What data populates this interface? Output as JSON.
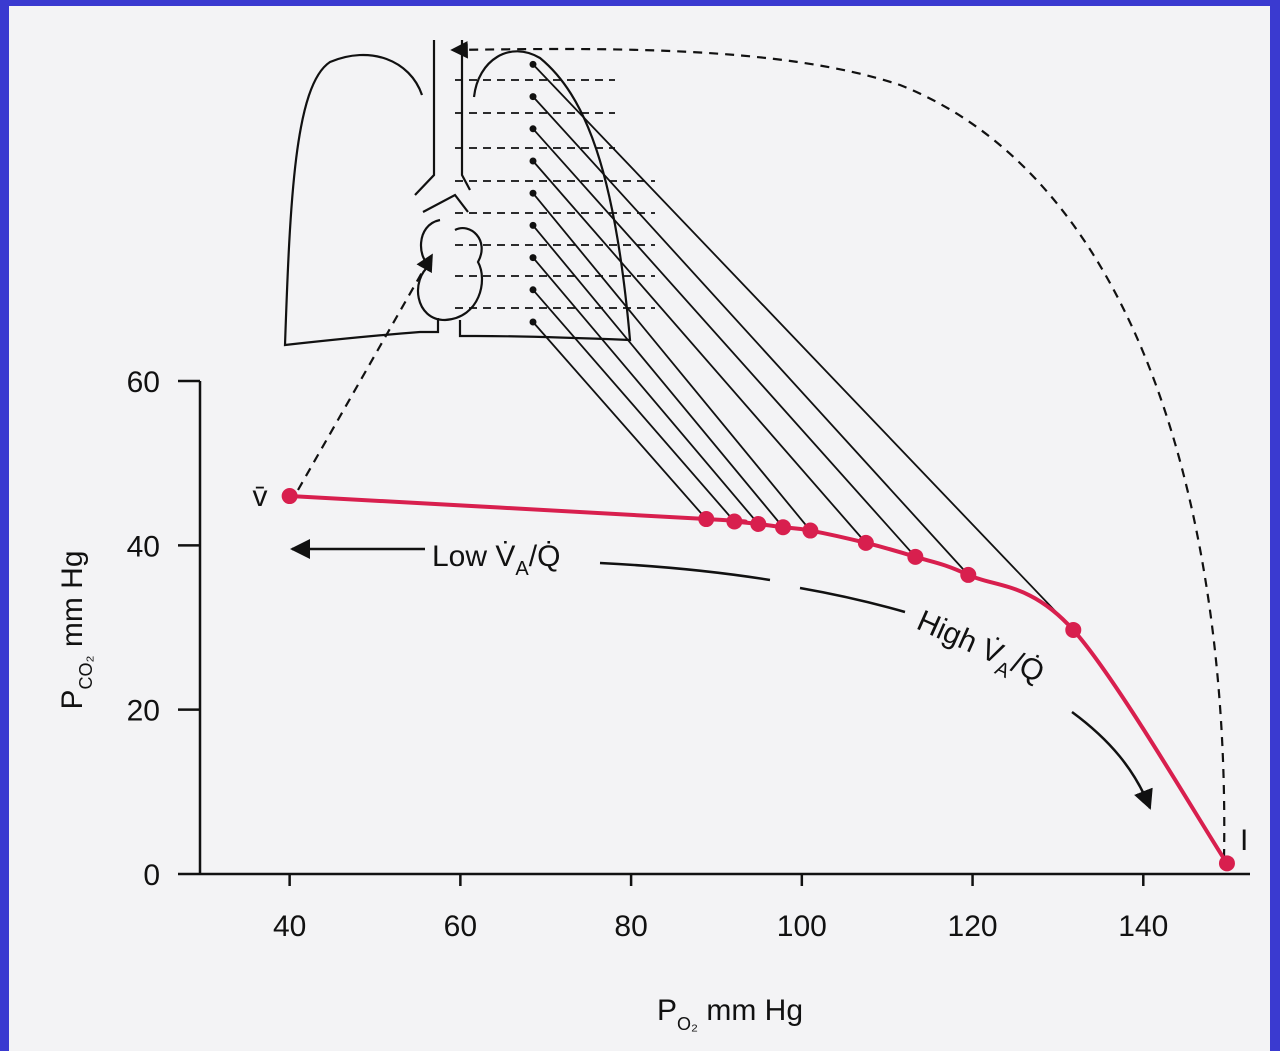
{
  "chart_data": {
    "type": "line",
    "x": [
      40,
      88.8,
      92.1,
      94.9,
      97.8,
      101,
      107.5,
      113.3,
      119.5,
      131.8,
      149.8
    ],
    "series": [
      {
        "color": "#d81f4e",
        "values": [
          46,
          43.2,
          42.9,
          42.6,
          42.2,
          41.8,
          40.3,
          38.6,
          36.4,
          29.7,
          1.3
        ]
      }
    ],
    "xlim": [
      29.5,
      152.5
    ],
    "ylim": [
      0,
      60
    ],
    "xticks": [
      40,
      60,
      80,
      100,
      120,
      140
    ],
    "yticks": [
      0,
      20,
      40,
      60
    ],
    "x_label": [
      "P",
      "O₂",
      " mm Hg"
    ],
    "y_label": [
      "P",
      "CO₂",
      " mm Hg"
    ],
    "annotations": {
      "v": "v̄",
      "i": "I",
      "low": [
        "Low V̇",
        "A",
        "/Q̇"
      ],
      "high": [
        "High V̇",
        "A",
        "/Q̇"
      ]
    }
  }
}
